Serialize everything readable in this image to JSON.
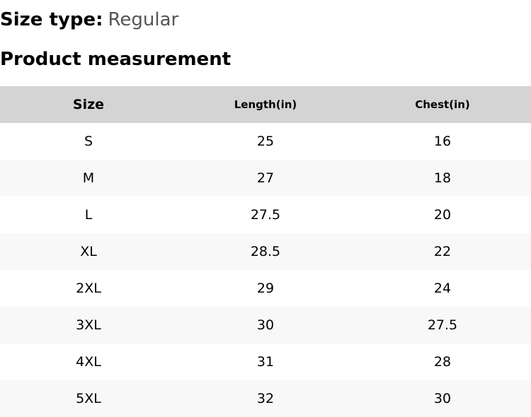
{
  "size_type": {
    "label": "Size type:",
    "value": "Regular"
  },
  "section_title": "Product measurement",
  "table": {
    "headers": [
      "Size",
      "Length(in)",
      "Chest(in)"
    ],
    "rows": [
      [
        "S",
        "25",
        "16"
      ],
      [
        "M",
        "27",
        "18"
      ],
      [
        "L",
        "27.5",
        "20"
      ],
      [
        "XL",
        "28.5",
        "22"
      ],
      [
        "2XL",
        "29",
        "24"
      ],
      [
        "3XL",
        "30",
        "27.5"
      ],
      [
        "4XL",
        "31",
        "28"
      ],
      [
        "5XL",
        "32",
        "30"
      ]
    ]
  },
  "colors": {
    "header_background": "#d4d4d4",
    "stripe_background": "#f8f8f8",
    "value_text": "#555555"
  }
}
